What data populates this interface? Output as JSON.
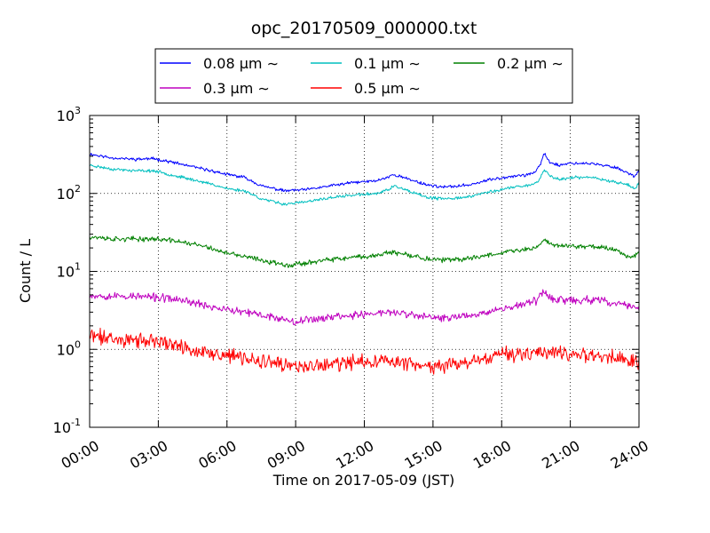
{
  "chart_data": {
    "type": "line",
    "title": "opc_20170509_000000.txt",
    "xlabel": "Time on 2017-05-09 (JST)",
    "ylabel": "Count / L",
    "x_unit": "hours (JST)",
    "xlim": [
      0,
      24
    ],
    "x_tick_values": [
      0,
      3,
      6,
      9,
      12,
      15,
      18,
      21,
      24
    ],
    "x_tick_labels": [
      "00:00",
      "03:00",
      "06:00",
      "09:00",
      "12:00",
      "15:00",
      "18:00",
      "21:00",
      "24:00"
    ],
    "yscale": "log",
    "ylim": [
      0.1,
      1000
    ],
    "y_ticks": [
      {
        "value": 0.1,
        "base": "10",
        "exp": "-1"
      },
      {
        "value": 1,
        "base": "10",
        "exp": "0"
      },
      {
        "value": 10,
        "base": "10",
        "exp": "1"
      },
      {
        "value": 100,
        "base": "10",
        "exp": "2"
      },
      {
        "value": 1000,
        "base": "10",
        "exp": "3"
      }
    ],
    "grid": true,
    "legend_position": "top-center, above plot",
    "series": [
      {
        "name": "0.08 μm ∼",
        "color": "#0000ff",
        "noise": 0.015,
        "seed": 11,
        "x": [
          0,
          1,
          2,
          2.8,
          3.5,
          4.5,
          5.5,
          6,
          6.8,
          7.5,
          8.5,
          9.5,
          10.5,
          11.5,
          12.5,
          13,
          13.3,
          14,
          14.8,
          15.5,
          16.5,
          17.5,
          18.5,
          19,
          19.5,
          19.7,
          19.85,
          20.1,
          20.5,
          21,
          22,
          23,
          23.5,
          23.8,
          24
        ],
        "y": [
          320,
          285,
          275,
          280,
          255,
          220,
          190,
          175,
          160,
          125,
          108,
          112,
          125,
          138,
          145,
          160,
          175,
          150,
          128,
          120,
          128,
          150,
          168,
          170,
          190,
          240,
          330,
          250,
          230,
          245,
          240,
          215,
          185,
          165,
          200
        ]
      },
      {
        "name": "0.1 μm ∼",
        "color": "#00bfbf",
        "noise": 0.015,
        "seed": 23,
        "x": [
          0,
          1,
          2,
          2.8,
          3.5,
          4.5,
          5.5,
          6,
          6.8,
          7.5,
          8.5,
          9.5,
          10.5,
          11.5,
          12.5,
          13,
          13.3,
          14,
          14.8,
          15.5,
          16.5,
          17.5,
          18.5,
          19,
          19.5,
          19.7,
          19.85,
          20.1,
          20.5,
          21,
          22,
          23,
          23.5,
          23.8,
          24
        ],
        "y": [
          230,
          205,
          195,
          195,
          175,
          150,
          128,
          115,
          108,
          85,
          73,
          78,
          88,
          95,
          100,
          110,
          125,
          105,
          88,
          85,
          90,
          105,
          120,
          125,
          135,
          160,
          200,
          170,
          150,
          160,
          160,
          140,
          130,
          115,
          135
        ]
      },
      {
        "name": "0.2 μm ∼",
        "color": "#008000",
        "noise": 0.025,
        "seed": 37,
        "x": [
          0,
          1,
          2,
          3,
          4,
          5,
          6,
          7,
          8,
          8.8,
          9.5,
          10.5,
          11.5,
          12.5,
          13,
          13.5,
          14,
          15,
          16,
          17,
          18,
          19,
          19.5,
          19.85,
          20.2,
          21,
          22,
          23,
          23.7,
          24
        ],
        "y": [
          28,
          26,
          26,
          26,
          24,
          21,
          17,
          15,
          13,
          12,
          13,
          14,
          15,
          16,
          17.5,
          17,
          16,
          14,
          14,
          15.5,
          17.5,
          19,
          20,
          26,
          22,
          21,
          21,
          19,
          15,
          18
        ]
      },
      {
        "name": "0.3 μm ∼",
        "color": "#bf00bf",
        "noise": 0.04,
        "seed": 53,
        "x": [
          0,
          1,
          2,
          3,
          4,
          5,
          6,
          7,
          8,
          9,
          10,
          11,
          12,
          13,
          14,
          15,
          16,
          17,
          18,
          19,
          19.5,
          19.85,
          20.3,
          21,
          22,
          23,
          24
        ],
        "y": [
          5.0,
          4.8,
          4.8,
          4.6,
          4.3,
          3.7,
          3.2,
          2.9,
          2.6,
          2.3,
          2.5,
          2.7,
          2.8,
          3.0,
          2.8,
          2.5,
          2.6,
          2.9,
          3.3,
          3.8,
          4.2,
          5.5,
          4.4,
          4.2,
          4.3,
          3.9,
          3.4
        ]
      },
      {
        "name": "0.5 μm ∼",
        "color": "#ff0000",
        "noise": 0.075,
        "seed": 71,
        "x": [
          0,
          1,
          2,
          3,
          4,
          5,
          6,
          7,
          8,
          9,
          10,
          11,
          12,
          13,
          14,
          15,
          16,
          17,
          18,
          19,
          20,
          21,
          22,
          23,
          24
        ],
        "y": [
          1.5,
          1.4,
          1.3,
          1.25,
          1.1,
          0.9,
          0.82,
          0.75,
          0.65,
          0.6,
          0.62,
          0.65,
          0.7,
          0.72,
          0.65,
          0.6,
          0.62,
          0.7,
          0.85,
          0.9,
          0.95,
          0.9,
          0.85,
          0.8,
          0.7
        ]
      }
    ]
  }
}
